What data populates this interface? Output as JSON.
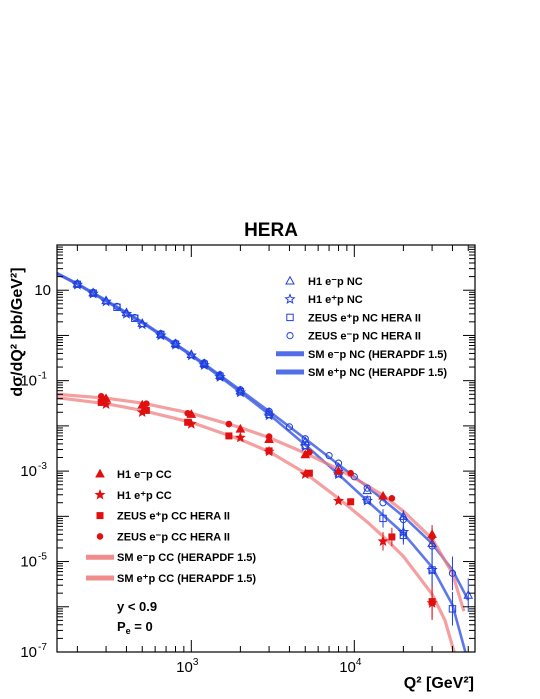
{
  "chart_data": {
    "type": "scatter",
    "title": "HERA",
    "xlabel": "Q² [GeV²]",
    "ylabel": "dσ/dQ² [pb/GeV²]",
    "xscale": "log",
    "yscale": "log",
    "xlim": [
      150,
      55000
    ],
    "ylim": [
      1e-07,
      100
    ],
    "x_tick_labels": [
      {
        "value": 1000,
        "base": "10",
        "exp": "3"
      },
      {
        "value": 10000,
        "base": "10",
        "exp": "4"
      }
    ],
    "y_tick_labels": [
      {
        "value": 10,
        "text": "10"
      },
      {
        "value": 0.1,
        "base": "10",
        "exp": "-1"
      },
      {
        "value": 0.001,
        "base": "10",
        "exp": "-3"
      },
      {
        "value": 1e-05,
        "base": "10",
        "exp": "-5"
      },
      {
        "value": 1e-07,
        "base": "10",
        "exp": "-7"
      }
    ],
    "legend_nc": [
      {
        "label": "H1 e⁻p NC",
        "marker": "triangle-open",
        "color": "#1f3fe0"
      },
      {
        "label": "H1 e⁺p NC",
        "marker": "star-open",
        "color": "#1f3fe0"
      },
      {
        "label": "ZEUS e⁺p NC HERA II",
        "marker": "square-open",
        "color": "#1f3fe0"
      },
      {
        "label": "ZEUS e⁻p NC HERA II",
        "marker": "circle-open",
        "color": "#1f3fe0"
      },
      {
        "label": "SM e⁻p NC (HERAPDF 1.5)",
        "marker": "band",
        "color": "#3f5fe6"
      },
      {
        "label": "SM e⁺p NC (HERAPDF 1.5)",
        "marker": "band",
        "color": "#3f5fe6"
      }
    ],
    "legend_cc": [
      {
        "label": "H1 e⁻p CC",
        "marker": "triangle-filled",
        "color": "#e01010"
      },
      {
        "label": "H1 e⁺p CC",
        "marker": "star-filled",
        "color": "#e01010"
      },
      {
        "label": "ZEUS e⁺p CC HERA II",
        "marker": "square-filled",
        "color": "#e01010"
      },
      {
        "label": "ZEUS e⁻p CC HERA II",
        "marker": "circle-filled",
        "color": "#e01010"
      },
      {
        "label": "SM e⁻p CC (HERAPDF 1.5)",
        "marker": "band",
        "color": "#f08080"
      },
      {
        "label": "SM e⁺p CC (HERAPDF 1.5)",
        "marker": "band",
        "color": "#f08080"
      }
    ],
    "annotations": [
      "y < 0.9",
      "P",
      "e",
      " = 0"
    ],
    "series": [
      {
        "name": "H1 e⁻p NC",
        "marker": "triangle-open",
        "color": "#1f3fe0",
        "x": [
          200,
          250,
          300,
          400,
          500,
          650,
          800,
          1000,
          1200,
          1500,
          2000,
          3000,
          5000,
          8000,
          12000,
          20000,
          30000,
          50000
        ],
        "y": [
          13.8,
          8.8,
          5.9,
          3.2,
          1.85,
          1.05,
          0.66,
          0.38,
          0.24,
          0.13,
          0.06,
          0.02,
          0.0045,
          0.0012,
          0.00037,
          0.0001,
          2.5e-05,
          1.8e-06
        ]
      },
      {
        "name": "H1 e⁺p NC",
        "marker": "star-open",
        "color": "#1f3fe0",
        "x": [
          200,
          250,
          300,
          400,
          500,
          650,
          800,
          1000,
          1200,
          1500,
          2000,
          3000,
          5000,
          8000,
          12000,
          20000,
          30000
        ],
        "y": [
          13.2,
          8.4,
          5.6,
          3.0,
          1.75,
          1.0,
          0.62,
          0.36,
          0.22,
          0.12,
          0.055,
          0.017,
          0.0035,
          0.00085,
          0.00022,
          4.5e-05,
          6.5e-06
        ]
      },
      {
        "name": "ZEUS e⁺p NC HERA II",
        "marker": "square-open",
        "color": "#1f3fe0",
        "x": [
          200,
          250,
          350,
          450,
          650,
          800,
          1200,
          1500,
          2000,
          3000,
          5000,
          8000,
          12000,
          15000,
          20000,
          30000,
          40000
        ],
        "y": [
          13.5,
          8.6,
          4.2,
          2.4,
          1.05,
          0.64,
          0.23,
          0.125,
          0.057,
          0.018,
          0.0037,
          0.00088,
          0.00023,
          9e-05,
          3.8e-05,
          6.5e-06,
          9e-07
        ]
      },
      {
        "name": "ZEUS e⁻p NC HERA II",
        "marker": "circle-open",
        "color": "#1f3fe0",
        "x": [
          200,
          250,
          350,
          450,
          650,
          800,
          1200,
          1500,
          2000,
          3000,
          4000,
          5000,
          7000,
          8000,
          10000,
          12000,
          15000,
          20000,
          30000,
          40000
        ],
        "y": [
          14.0,
          9.0,
          4.4,
          2.5,
          1.1,
          0.68,
          0.25,
          0.135,
          0.063,
          0.021,
          0.0095,
          0.0052,
          0.0022,
          0.0015,
          0.00075,
          0.00042,
          0.0002,
          8.5e-05,
          2.2e-05,
          5.5e-06
        ]
      },
      {
        "name": "H1 e⁻p CC",
        "marker": "triangle-filled",
        "color": "#e01010",
        "x": [
          300,
          500,
          1000,
          2000,
          3000,
          5000,
          8000,
          15000,
          30000
        ],
        "y": [
          0.04,
          0.029,
          0.018,
          0.0085,
          0.005,
          0.0023,
          0.001,
          0.00028,
          4e-05
        ]
      },
      {
        "name": "H1 e⁺p CC",
        "marker": "star-filled",
        "color": "#e01010",
        "x": [
          300,
          500,
          1000,
          2000,
          3000,
          5000,
          8000,
          15000,
          30000
        ],
        "y": [
          0.03,
          0.02,
          0.011,
          0.0055,
          0.0027,
          0.00085,
          0.00022,
          2.8e-05,
          1.2e-06
        ]
      },
      {
        "name": "ZEUS e⁺p CC HERA II",
        "marker": "square-filled",
        "color": "#e01010",
        "x": [
          280,
          530,
          950,
          1700,
          3000,
          5300,
          9500,
          17000,
          30000
        ],
        "y": [
          0.033,
          0.022,
          0.012,
          0.006,
          0.0028,
          0.0009,
          0.00021,
          3.5e-05,
          1.3e-06
        ]
      },
      {
        "name": "ZEUS e⁻p CC HERA II",
        "marker": "circle-filled",
        "color": "#e01010",
        "x": [
          280,
          530,
          950,
          1700,
          3000,
          5300,
          9500,
          17000,
          30000
        ],
        "y": [
          0.045,
          0.031,
          0.019,
          0.011,
          0.0058,
          0.0026,
          0.0009,
          0.00025,
          3.5e-05
        ]
      }
    ],
    "model_curves": [
      {
        "name": "SM e⁻p NC (HERAPDF 1.5)",
        "color": "#3f5fe6",
        "x": [
          150,
          200,
          300,
          500,
          1000,
          2000,
          3000,
          5000,
          8000,
          12000,
          20000,
          30000,
          40000,
          50000
        ],
        "y": [
          24,
          14,
          6.0,
          2.0,
          0.38,
          0.062,
          0.021,
          0.0052,
          0.0014,
          0.00045,
          0.0001,
          2.5e-05,
          6.5e-06,
          1.4e-06
        ]
      },
      {
        "name": "SM e⁺p NC (HERAPDF 1.5)",
        "color": "#3f5fe6",
        "x": [
          150,
          200,
          300,
          500,
          1000,
          2000,
          3000,
          5000,
          8000,
          12000,
          20000,
          30000,
          40000,
          48000
        ],
        "y": [
          23,
          13.5,
          5.7,
          1.9,
          0.36,
          0.056,
          0.018,
          0.0038,
          0.00085,
          0.00022,
          4.2e-05,
          7.5e-06,
          1.1e-06,
          1e-07
        ]
      },
      {
        "name": "SM e⁻p CC (HERAPDF 1.5)",
        "color": "#f08080",
        "x": [
          150,
          300,
          500,
          1000,
          2000,
          3000,
          5000,
          8000,
          12000,
          15000,
          20000,
          30000,
          40000,
          47000
        ],
        "y": [
          0.05,
          0.041,
          0.032,
          0.019,
          0.0092,
          0.0055,
          0.0025,
          0.0011,
          0.00048,
          0.00029,
          0.00013,
          3.2e-05,
          5.5e-06,
          8e-07
        ]
      },
      {
        "name": "SM e⁺p CC (HERAPDF 1.5)",
        "color": "#f08080",
        "x": [
          150,
          300,
          500,
          1000,
          2000,
          3000,
          5000,
          8000,
          12000,
          15000,
          20000,
          30000,
          36000,
          41000
        ],
        "y": [
          0.042,
          0.031,
          0.022,
          0.012,
          0.005,
          0.0027,
          0.0009,
          0.00025,
          7.5e-05,
          3.6e-05,
          1.3e-05,
          1.9e-06,
          5e-07,
          1e-07
        ]
      }
    ]
  }
}
